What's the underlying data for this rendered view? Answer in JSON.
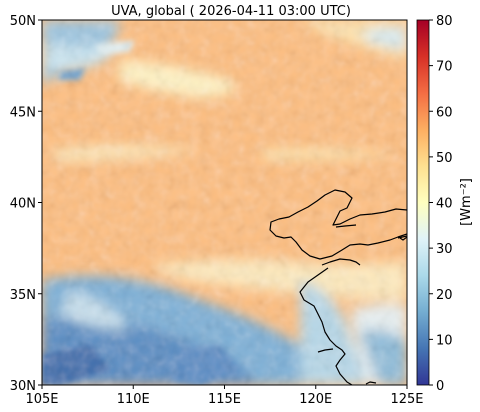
{
  "title": "UVA, global ( 2026-04-11 03:00 UTC)",
  "map": {
    "lon_min": 105,
    "lon_max": 125,
    "lat_min": 30,
    "lat_max": 50,
    "x_ticks": [
      {
        "value": 105,
        "label": "105E"
      },
      {
        "value": 110,
        "label": "110E"
      },
      {
        "value": 115,
        "label": "115E"
      },
      {
        "value": 120,
        "label": "120E"
      },
      {
        "value": 125,
        "label": "125E"
      }
    ],
    "y_ticks": [
      {
        "value": 30,
        "label": "30N"
      },
      {
        "value": 35,
        "label": "35N"
      },
      {
        "value": 40,
        "label": "40N"
      },
      {
        "value": 45,
        "label": "45N"
      },
      {
        "value": 50,
        "label": "50N"
      }
    ],
    "field_description": "Mostly uniform orange field (~50 W/m2) over northern China and Mongolia; lower values (blue, 10-30) in the southwest corner and patches in the north-west.",
    "coastline_color": "#000000"
  },
  "colorbar": {
    "label": "[Wm⁻²]",
    "min": 0,
    "max": 80,
    "ticks": [
      0,
      10,
      20,
      30,
      40,
      50,
      60,
      70,
      80
    ],
    "tick_labels": [
      "0",
      "10",
      "20",
      "30",
      "40",
      "50",
      "60",
      "70",
      "80"
    ],
    "colormap": [
      "#313695",
      "#4575b4",
      "#74add1",
      "#abd9e9",
      "#e0f3f8",
      "#ffffbf",
      "#fee090",
      "#fdae61",
      "#f46d43",
      "#d73027",
      "#a50026"
    ]
  }
}
